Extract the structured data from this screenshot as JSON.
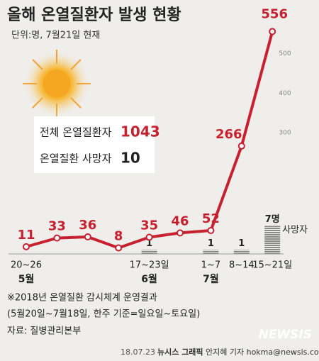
{
  "title": "올해 온열질환자 발생 현황",
  "subtitle": "단위:명, 7월21일 현재",
  "info": [
    {
      "label": "전체 온열질환자",
      "value": 1043
    },
    {
      "label": "온열질환 사망자",
      "value": 10
    }
  ],
  "notes": [
    "※2018년 온열질환 감시체계 운영결과",
    "(5월20일~7월18일, 한주 기준=일요일~토요일)"
  ],
  "source": "자료: 질병관리본부",
  "logo": "NEWSIS",
  "footer": {
    "date": "18.07.23",
    "agency": "뉴시스 그래픽",
    "author": "안지혜 기자 hokma@newsis.com"
  },
  "chart_data": {
    "type": "line",
    "categories": [
      "20~26",
      null,
      null,
      null,
      "17~23일",
      null,
      "1~7",
      "8~14",
      "15~21일"
    ],
    "months": [
      "5월",
      null,
      null,
      null,
      "6월",
      null,
      "7월",
      null,
      null
    ],
    "ylim": [
      0,
      600
    ],
    "yticks": [
      300,
      400,
      500
    ],
    "y2lim": [
      0,
      60
    ],
    "series": [
      {
        "color": "#c8202f",
        "values": [
          11,
          33,
          36,
          8,
          35,
          46,
          52,
          266,
          556
        ]
      },
      {
        "name": "사망자",
        "type": "bar",
        "axis": "y2",
        "color": "#8a8a8a",
        "values": [
          null,
          null,
          null,
          null,
          1,
          null,
          1,
          1,
          7
        ],
        "value_labels": [
          null,
          null,
          null,
          null,
          "1",
          null,
          "1",
          "1",
          "7명"
        ]
      }
    ]
  }
}
